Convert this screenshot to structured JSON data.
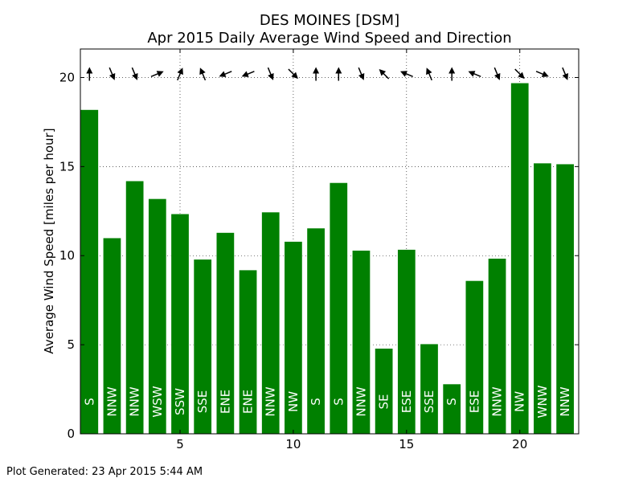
{
  "chart_data": {
    "type": "bar",
    "title": "DES MOINES [DSM]",
    "subtitle": "Apr 2015 Daily Average Wind Speed and Direction",
    "xlabel": "",
    "ylabel": "Average Wind Speed [miles per hour]",
    "xlim": [
      0.6,
      22.6
    ],
    "ylim": [
      0,
      21.6
    ],
    "x_ticks": [
      5,
      10,
      15,
      20
    ],
    "y_ticks": [
      0,
      5,
      10,
      15,
      20
    ],
    "grid": true,
    "bar_color": "#008000",
    "arrow_color": "#000000",
    "days": [
      1,
      2,
      3,
      4,
      5,
      6,
      7,
      8,
      9,
      10,
      11,
      12,
      13,
      14,
      15,
      16,
      17,
      18,
      19,
      20,
      21,
      22
    ],
    "values": [
      18.2,
      11.0,
      14.2,
      13.2,
      12.35,
      9.8,
      11.3,
      9.2,
      12.45,
      10.8,
      11.55,
      14.1,
      10.3,
      4.8,
      10.35,
      5.05,
      2.8,
      8.6,
      9.85,
      19.7,
      15.2,
      15.15
    ],
    "directions": [
      "S",
      "NNW",
      "NNW",
      "WSW",
      "SSW",
      "SSE",
      "ENE",
      "ENE",
      "NNW",
      "NW",
      "S",
      "S",
      "NNW",
      "SE",
      "ESE",
      "SSE",
      "S",
      "ESE",
      "NNW",
      "NW",
      "WNW",
      "NNW"
    ]
  },
  "footer": {
    "generated": "Plot Generated: 23 Apr 2015 5:44 AM"
  }
}
